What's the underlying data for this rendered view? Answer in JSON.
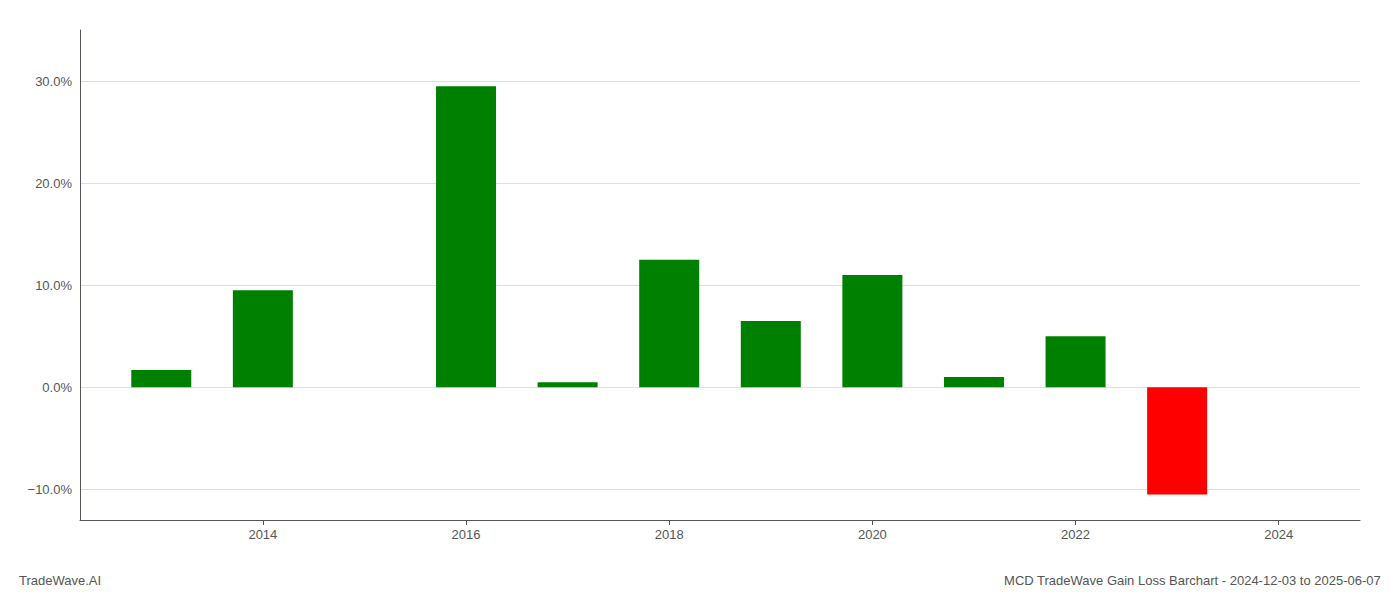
{
  "chart_data": {
    "type": "bar",
    "title": "MCD TradeWave Gain Loss Barchart - 2024-12-03 to 2025-06-07",
    "annotations": [
      "TradeWave.AI"
    ],
    "x": [
      2013,
      2014,
      2016,
      2017,
      2018,
      2019,
      2020,
      2021,
      2022,
      2023
    ],
    "values": [
      1.7,
      9.5,
      29.5,
      0.5,
      12.5,
      6.5,
      11.0,
      1.0,
      5.0,
      -10.5
    ],
    "colors": [
      "#008000",
      "#008000",
      "#008000",
      "#008000",
      "#008000",
      "#008000",
      "#008000",
      "#008000",
      "#008000",
      "#ff0000"
    ],
    "xlim": [
      2012.2,
      2024.8
    ],
    "xticks": [
      2014,
      2016,
      2018,
      2020,
      2022,
      2024
    ],
    "ylim": [
      -13.0,
      35.0
    ],
    "yticks": [
      {
        "value": -10.0,
        "label": "−10.0%"
      },
      {
        "value": 0.0,
        "label": "0.0%"
      },
      {
        "value": 10.0,
        "label": "10.0%"
      },
      {
        "value": 20.0,
        "label": "20.0%"
      },
      {
        "value": 30.0,
        "label": "30.0%"
      }
    ],
    "grid": true
  }
}
